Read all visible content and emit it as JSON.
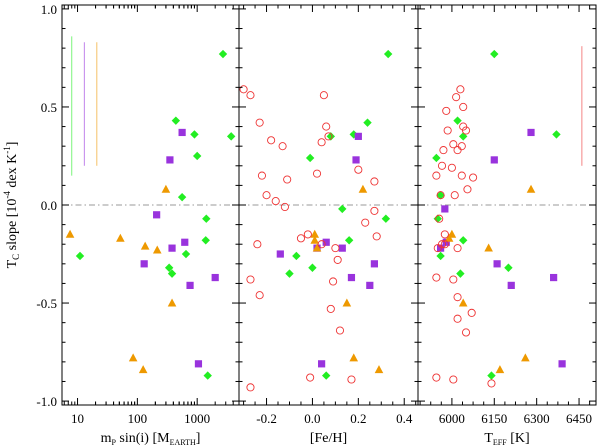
{
  "chart_data": {
    "type": "scatter",
    "y_label": "T_C slope [10^-4 dex K^-1]",
    "y_label_parts": {
      "pre": "T",
      "sub": "C",
      "mid": " slope [10",
      "sup": "-4",
      "post": " dex K",
      "sup2": "-1",
      "end": "]"
    },
    "ylim": [
      -1.02,
      1.02
    ],
    "yticks": [
      1.0,
      0.5,
      0.0,
      -0.5,
      -1.0
    ],
    "ytick_labels": [
      "1.0",
      "0.5",
      "0.0",
      "-0.5",
      "-1.0"
    ],
    "reference_line_y": 0.0,
    "colors": {
      "green": "#22ee22",
      "purple": "#9933dd",
      "orange": "#ee9900",
      "red": "#ee3333",
      "refline": "#999999"
    },
    "panels": [
      {
        "id": "mass",
        "xlabel_parts": {
          "pre": "m",
          "sub": "P",
          "mid": " sin(i) [M",
          "sub2": "EARTH",
          "end": "]"
        },
        "xscale": "log",
        "xlim": [
          5.5,
          5000
        ],
        "xticks": [
          10,
          100,
          1000
        ],
        "xtick_labels": [
          "10",
          "100",
          "1000"
        ],
        "error_bars": [
          {
            "x": 8,
            "color": "green",
            "y0": 0.15,
            "y1": 0.86
          },
          {
            "x": 13,
            "color": "purple",
            "y0": 0.2,
            "y1": 0.83
          },
          {
            "x": 21,
            "color": "orange",
            "y0": 0.2,
            "y1": 0.83
          }
        ],
        "series": [
          {
            "name": "green",
            "marker": "diamond",
            "points": [
              [
                2700,
                0.77
              ],
              [
                900,
                0.36
              ],
              [
                3700,
                0.35
              ],
              [
                1000,
                0.25
              ],
              [
                440,
                0.43
              ],
              [
                560,
                0.04
              ],
              [
                1420,
                -0.07
              ],
              [
                1390,
                -0.18
              ],
              [
                650,
                -0.25
              ],
              [
                11,
                -0.26
              ],
              [
                340,
                -0.32
              ],
              [
                380,
                -0.35
              ],
              [
                1500,
                -0.87
              ]
            ]
          },
          {
            "name": "purple",
            "marker": "square",
            "points": [
              [
                560,
                0.37
              ],
              [
                350,
                0.23
              ],
              [
                210,
                -0.05
              ],
              [
                620,
                -0.19
              ],
              [
                380,
                -0.22
              ],
              [
                130,
                -0.3
              ],
              [
                2000,
                -0.37
              ],
              [
                760,
                -0.41
              ],
              [
                1050,
                -0.81
              ]
            ]
          },
          {
            "name": "orange",
            "marker": "triangle",
            "points": [
              [
                300,
                0.08
              ],
              [
                7.5,
                -0.15
              ],
              [
                52,
                -0.17
              ],
              [
                135,
                -0.21
              ],
              [
                215,
                -0.23
              ],
              [
                380,
                -0.5
              ],
              [
                85,
                -0.78
              ],
              [
                125,
                -0.84
              ]
            ]
          }
        ]
      },
      {
        "id": "feh",
        "xlabel": "[Fe/H]",
        "xscale": "linear",
        "xlim": [
          -0.32,
          0.46
        ],
        "xticks": [
          -0.2,
          0.0,
          0.2,
          0.4
        ],
        "xtick_labels": [
          "-0.2",
          "0.0",
          "0.2",
          "0.4"
        ],
        "series": [
          {
            "name": "green",
            "marker": "diamond",
            "points": [
              [
                0.33,
                0.77
              ],
              [
                0.24,
                0.42
              ],
              [
                0.18,
                0.36
              ],
              [
                0.08,
                0.35
              ],
              [
                -0.01,
                0.24
              ],
              [
                0.13,
                -0.02
              ],
              [
                0.32,
                -0.07
              ],
              [
                0.16,
                -0.18
              ],
              [
                -0.07,
                -0.26
              ],
              [
                0.0,
                -0.32
              ],
              [
                -0.1,
                -0.35
              ],
              [
                0.06,
                -0.87
              ]
            ]
          },
          {
            "name": "purple",
            "marker": "square",
            "points": [
              [
                0.2,
                0.35
              ],
              [
                0.19,
                0.23
              ],
              [
                0.06,
                -0.19
              ],
              [
                0.13,
                -0.22
              ],
              [
                0.02,
                -0.22
              ],
              [
                -0.14,
                -0.25
              ],
              [
                0.27,
                -0.3
              ],
              [
                0.17,
                -0.37
              ],
              [
                0.25,
                -0.41
              ],
              [
                0.04,
                -0.81
              ]
            ]
          },
          {
            "name": "orange",
            "marker": "triangle",
            "points": [
              [
                0.22,
                0.08
              ],
              [
                0.01,
                -0.15
              ],
              [
                0.01,
                -0.18
              ],
              [
                0.02,
                -0.22
              ],
              [
                0.15,
                -0.5
              ],
              [
                0.18,
                -0.78
              ],
              [
                0.29,
                -0.84
              ]
            ]
          },
          {
            "name": "red",
            "marker": "circle",
            "points": [
              [
                -0.3,
                0.59
              ],
              [
                -0.27,
                0.56
              ],
              [
                0.05,
                0.56
              ],
              [
                0.06,
                0.4
              ],
              [
                0.07,
                0.35
              ],
              [
                -0.23,
                0.42
              ],
              [
                -0.18,
                0.33
              ],
              [
                -0.13,
                0.3
              ],
              [
                0.04,
                0.32
              ],
              [
                -0.22,
                0.15
              ],
              [
                -0.11,
                0.13
              ],
              [
                0.02,
                0.16
              ],
              [
                0.2,
                0.18
              ],
              [
                0.27,
                0.12
              ],
              [
                -0.2,
                0.05
              ],
              [
                -0.16,
                0.02
              ],
              [
                -0.12,
                -0.01
              ],
              [
                0.27,
                -0.03
              ],
              [
                0.23,
                -0.09
              ],
              [
                -0.02,
                -0.15
              ],
              [
                -0.05,
                -0.17
              ],
              [
                -0.24,
                -0.2
              ],
              [
                0.04,
                -0.2
              ],
              [
                0.1,
                -0.22
              ],
              [
                0.11,
                -0.28
              ],
              [
                0.28,
                -0.16
              ],
              [
                -0.27,
                -0.38
              ],
              [
                0.09,
                -0.39
              ],
              [
                -0.23,
                -0.46
              ],
              [
                0.12,
                -0.64
              ],
              [
                0.08,
                -0.53
              ],
              [
                -0.01,
                -0.88
              ],
              [
                0.17,
                -0.89
              ],
              [
                -0.27,
                -0.93
              ]
            ]
          }
        ]
      },
      {
        "id": "teff",
        "xlabel_parts": {
          "pre": "T",
          "sub": "EFF",
          "end": " [K]"
        },
        "xscale": "linear",
        "xlim": [
          5880,
          6510
        ],
        "xticks": [
          6000,
          6150,
          6300,
          6450
        ],
        "xtick_labels": [
          "6000",
          "6150",
          "6300",
          "6450"
        ],
        "error_bars": [
          {
            "x": 6460,
            "color": "red",
            "y0": 0.2,
            "y1": 0.81
          }
        ],
        "series": [
          {
            "name": "green",
            "marker": "diamond",
            "points": [
              [
                6150,
                0.77
              ],
              [
                6020,
                0.43
              ],
              [
                6370,
                0.36
              ],
              [
                6040,
                0.35
              ],
              [
                5945,
                0.24
              ],
              [
                5960,
                0.05
              ],
              [
                5950,
                -0.07
              ],
              [
                6040,
                -0.18
              ],
              [
                5960,
                -0.26
              ],
              [
                6200,
                -0.32
              ],
              [
                6030,
                -0.35
              ],
              [
                6140,
                -0.87
              ]
            ]
          },
          {
            "name": "purple",
            "marker": "square",
            "points": [
              [
                6280,
                0.37
              ],
              [
                6150,
                0.23
              ],
              [
                5975,
                -0.02
              ],
              [
                5980,
                -0.19
              ],
              [
                5960,
                -0.22
              ],
              [
                6160,
                -0.3
              ],
              [
                6360,
                -0.37
              ],
              [
                6210,
                -0.41
              ],
              [
                6390,
                -0.81
              ]
            ]
          },
          {
            "name": "orange",
            "marker": "triangle",
            "points": [
              [
                6280,
                0.08
              ],
              [
                6000,
                -0.15
              ],
              [
                5990,
                -0.17
              ],
              [
                6130,
                -0.22
              ],
              [
                6040,
                -0.5
              ],
              [
                6260,
                -0.78
              ],
              [
                6170,
                -0.84
              ]
            ]
          },
          {
            "name": "red",
            "marker": "circle",
            "points": [
              [
                6030,
                0.59
              ],
              [
                6015,
                0.55
              ],
              [
                6040,
                0.5
              ],
              [
                5980,
                0.48
              ],
              [
                6040,
                0.4
              ],
              [
                5985,
                0.38
              ],
              [
                6050,
                0.38
              ],
              [
                6005,
                0.31
              ],
              [
                6035,
                0.3
              ],
              [
                5970,
                0.28
              ],
              [
                6020,
                0.28
              ],
              [
                5965,
                0.2
              ],
              [
                6000,
                0.19
              ],
              [
                5945,
                0.15
              ],
              [
                6035,
                0.15
              ],
              [
                6075,
                0.14
              ],
              [
                5960,
                0.05
              ],
              [
                6010,
                0.05
              ],
              [
                6055,
                0.08
              ],
              [
                5955,
                -0.07
              ],
              [
                5975,
                -0.15
              ],
              [
                5965,
                -0.2
              ],
              [
                5975,
                -0.2
              ],
              [
                5950,
                -0.22
              ],
              [
                6020,
                -0.22
              ],
              [
                5945,
                -0.37
              ],
              [
                6005,
                -0.38
              ],
              [
                6020,
                -0.47
              ],
              [
                6050,
                -0.65
              ],
              [
                6070,
                -0.55
              ],
              [
                6020,
                -0.58
              ],
              [
                5945,
                -0.88
              ],
              [
                6005,
                -0.89
              ],
              [
                6140,
                -0.91
              ]
            ]
          }
        ]
      }
    ]
  }
}
